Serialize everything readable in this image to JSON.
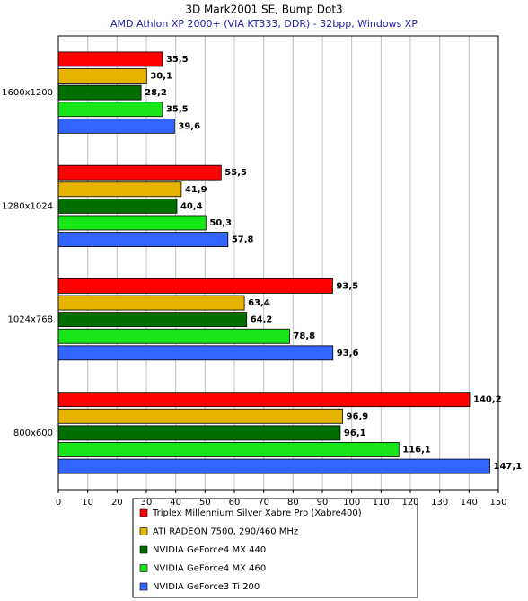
{
  "chart_data": {
    "type": "hbar",
    "title": "3D Mark2001 SE, Bump Dot3",
    "subtitle": "AMD Athlon XP 2000+ (VIA KT333, DDR) - 32bpp, Windows XP",
    "categories": [
      "1600x1200",
      "1280x1024",
      "1024x768",
      "800x600"
    ],
    "series": [
      {
        "name": "Triplex Millennium Silver Xabre Pro (Xabre400)",
        "color": "#ff0000",
        "values": [
          35.5,
          55.5,
          93.5,
          140.2
        ],
        "value_labels": [
          "35,5",
          "55,5",
          "93,5",
          "140,2"
        ]
      },
      {
        "name": "ATI RADEON 7500, 290/460 MHz",
        "color": "#e6b400",
        "values": [
          30.1,
          41.9,
          63.4,
          96.9
        ],
        "value_labels": [
          "30,1",
          "41,9",
          "63,4",
          "96,9"
        ]
      },
      {
        "name": "NVIDIA GeForce4 MX 440",
        "color": "#006e00",
        "values": [
          28.2,
          40.4,
          64.2,
          96.1
        ],
        "value_labels": [
          "28,2",
          "40,4",
          "64,2",
          "96,1"
        ]
      },
      {
        "name": "NVIDIA GeForce4 MX 460",
        "color": "#19e619",
        "values": [
          35.5,
          50.3,
          78.8,
          116.1
        ],
        "value_labels": [
          "35,5",
          "50,3",
          "78,8",
          "116,1"
        ]
      },
      {
        "name": "NVIDIA GeForce3 Ti 200",
        "color": "#3264ff",
        "values": [
          39.6,
          57.8,
          93.6,
          147.1
        ],
        "value_labels": [
          "39,6",
          "57,8",
          "93,6",
          "147,1"
        ]
      }
    ],
    "xlim": [
      0,
      150
    ],
    "xticks": [
      0,
      10,
      20,
      30,
      40,
      50,
      60,
      70,
      80,
      90,
      100,
      110,
      120,
      130,
      140,
      150
    ],
    "grid": true
  }
}
